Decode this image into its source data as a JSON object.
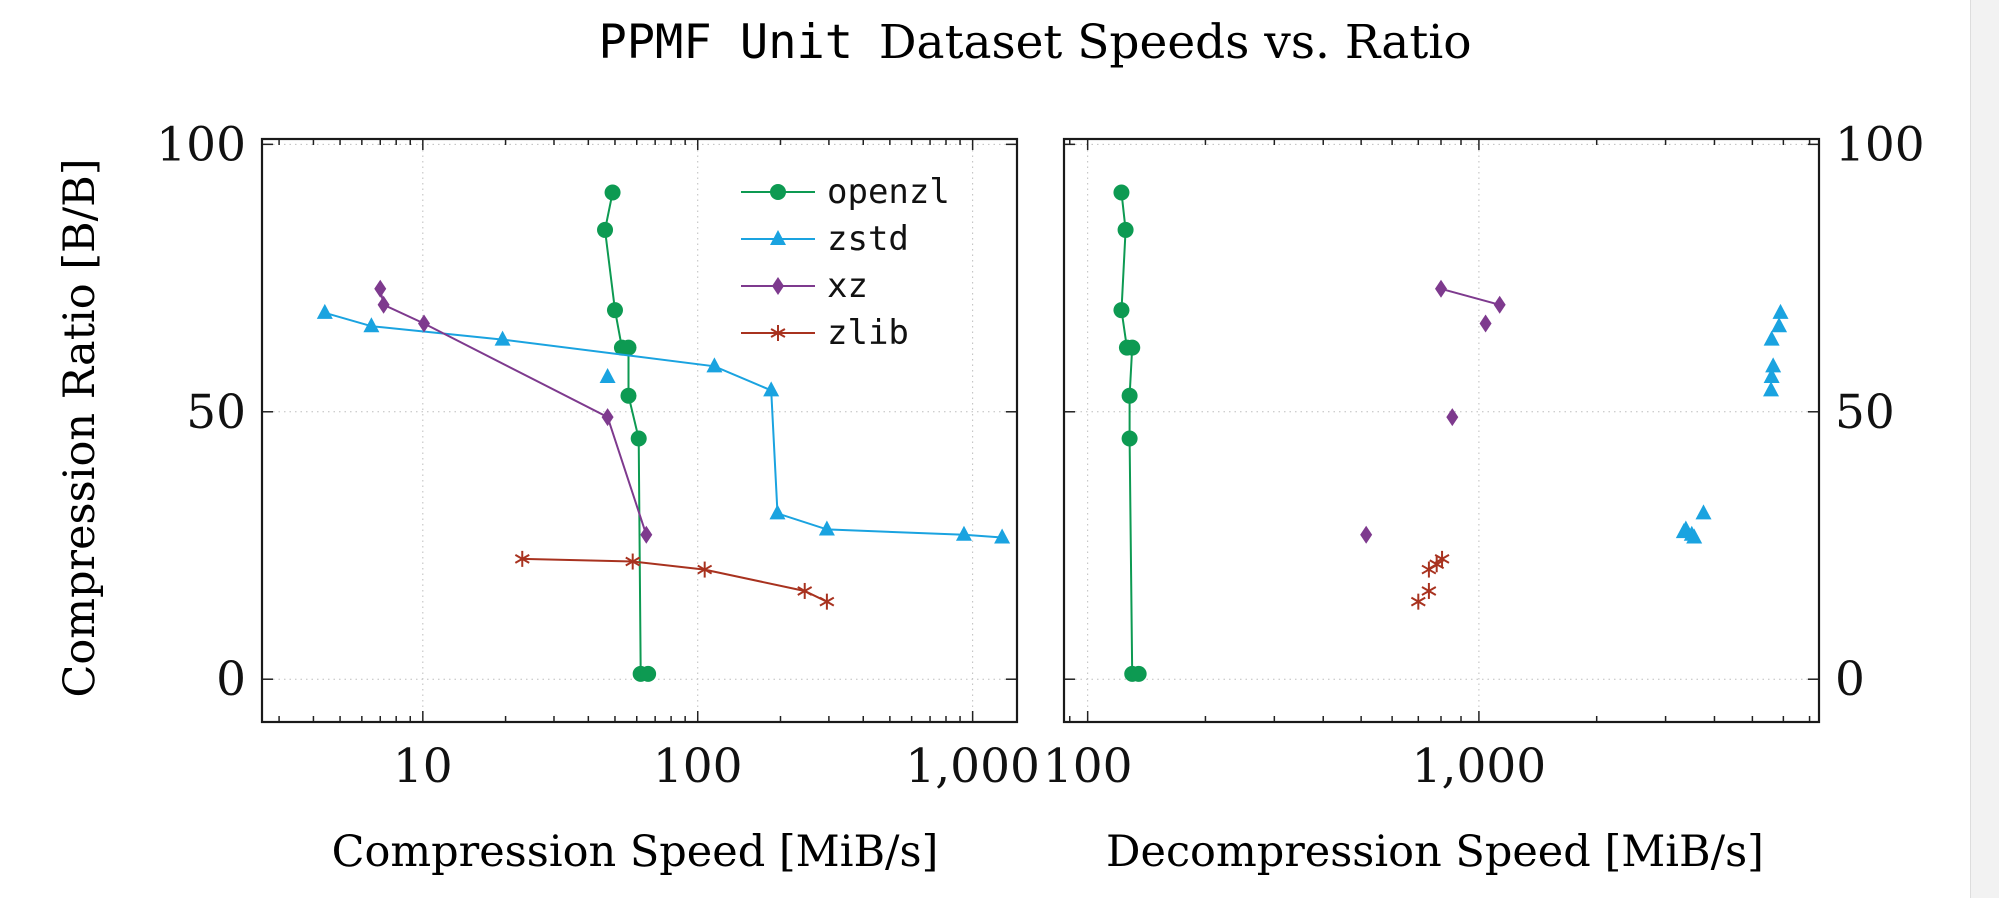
{
  "title": {
    "mono": "PPMF Unit",
    "serif": "Dataset Speeds vs. Ratio"
  },
  "colors": {
    "openzl": "#0d9a52",
    "zstd": "#1aa3e0",
    "xz": "#7e3a8e",
    "zlib": "#a8321f"
  },
  "chart_data": [
    {
      "type": "line",
      "xlabel": "Compression Speed [MiB/s]",
      "ylabel": "Compression Ratio [B/B]",
      "xscale": "log",
      "xlim": [
        2.6,
        1450
      ],
      "ylim": [
        -8,
        101
      ],
      "yticks": [
        0,
        50,
        100
      ],
      "ytick_labels": [
        "0",
        "50",
        "100"
      ],
      "xticks": [
        10,
        100,
        1000
      ],
      "xtick_labels": [
        "10",
        "100",
        "1,000"
      ],
      "grid": true,
      "legend": "top-right",
      "series": [
        {
          "name": "openzl",
          "marker": "circle",
          "connected": true,
          "points": [
            [
              49,
              91
            ],
            [
              46,
              84
            ],
            [
              50,
              69
            ],
            [
              53,
              62
            ],
            [
              56,
              62
            ],
            [
              56,
              53
            ],
            [
              61,
              45
            ],
            [
              62,
              1
            ],
            [
              66,
              1
            ]
          ]
        },
        {
          "name": "zstd",
          "marker": "triangle",
          "connected": true,
          "points": [
            [
              4.4,
              68.5
            ],
            [
              6.5,
              66
            ],
            [
              19.5,
              63.5
            ],
            [
              115,
              58.5
            ],
            [
              185,
              54
            ],
            [
              195,
              31
            ],
            [
              295,
              28
            ],
            [
              930,
              27
            ],
            [
              1280,
              26.5
            ]
          ]
        },
        {
          "name": "zstd",
          "marker": "triangle",
          "connected": false,
          "points": [
            [
              47,
              56.5
            ]
          ]
        },
        {
          "name": "xz",
          "marker": "diamond",
          "connected": true,
          "points": [
            [
              7,
              73
            ],
            [
              7.2,
              70
            ],
            [
              10.1,
              66.5
            ],
            [
              47,
              49
            ],
            [
              65,
              27
            ]
          ]
        },
        {
          "name": "zlib",
          "marker": "star",
          "connected": true,
          "points": [
            [
              23,
              22.5
            ],
            [
              58,
              22
            ],
            [
              106,
              20.5
            ],
            [
              245,
              16.5
            ],
            [
              295,
              14.5
            ]
          ]
        }
      ]
    },
    {
      "type": "scatter",
      "xlabel": "Decompression Speed [MiB/s]",
      "xscale": "log",
      "xlim": [
        87,
        7400
      ],
      "ylim": [
        -8,
        101
      ],
      "yticks": [
        0,
        50,
        100
      ],
      "ytick_labels": [
        "0",
        "50",
        "100"
      ],
      "xticks": [
        100,
        1000
      ],
      "xtick_labels": [
        "100",
        "1,000"
      ],
      "grid": true,
      "series": [
        {
          "name": "openzl",
          "marker": "circle",
          "connected": true,
          "points": [
            [
              122,
              91
            ],
            [
              125,
              84
            ],
            [
              122,
              69
            ],
            [
              126,
              62
            ],
            [
              130,
              62
            ],
            [
              128,
              53
            ],
            [
              128,
              45
            ],
            [
              130,
              1
            ],
            [
              135,
              1
            ]
          ]
        },
        {
          "name": "zstd",
          "marker": "triangle",
          "connected": false,
          "points": [
            [
              5900,
              68.5
            ],
            [
              5850,
              66
            ],
            [
              5600,
              63.5
            ],
            [
              5650,
              58.5
            ],
            [
              5600,
              56.5
            ],
            [
              5580,
              54
            ],
            [
              3750,
              31
            ],
            [
              3380,
              28
            ],
            [
              3340,
              27.5
            ],
            [
              3500,
              27
            ],
            [
              3550,
              26.5
            ]
          ]
        },
        {
          "name": "xz",
          "marker": "diamond",
          "connected": false,
          "points": [
            [
              515,
              27
            ],
            [
              855,
              49
            ],
            [
              1040,
              66.5
            ]
          ]
        },
        {
          "name": "xz",
          "marker": "diamond",
          "connected": true,
          "points": [
            [
              800,
              73
            ],
            [
              1130,
              70
            ]
          ]
        },
        {
          "name": "zlib",
          "marker": "star",
          "connected": false,
          "points": [
            [
              700,
              14.5
            ],
            [
              745,
              16.5
            ],
            [
              745,
              20.5
            ],
            [
              780,
              21.5
            ],
            [
              805,
              22.5
            ]
          ]
        }
      ]
    }
  ],
  "legend": [
    {
      "name": "openzl",
      "marker": "circle"
    },
    {
      "name": "zstd",
      "marker": "triangle"
    },
    {
      "name": "xz",
      "marker": "diamond"
    },
    {
      "name": "zlib",
      "marker": "star"
    }
  ]
}
